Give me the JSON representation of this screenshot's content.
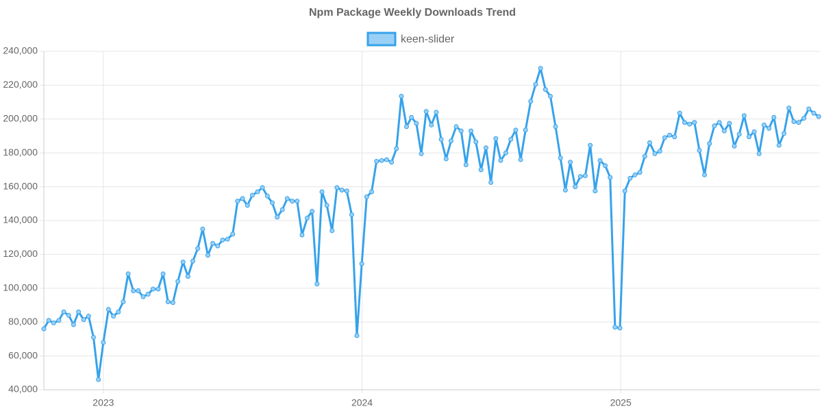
{
  "chart_data": {
    "type": "line",
    "title": "Npm Package Weekly Downloads Trend",
    "x": [
      2022.77,
      2022.789,
      2022.808,
      2022.828,
      2022.847,
      2022.866,
      2022.885,
      2022.904,
      2022.924,
      2022.943,
      2022.962,
      2022.981,
      2023.0,
      2023.02,
      2023.039,
      2023.058,
      2023.077,
      2023.096,
      2023.116,
      2023.135,
      2023.154,
      2023.173,
      2023.192,
      2023.212,
      2023.231,
      2023.25,
      2023.269,
      2023.288,
      2023.308,
      2023.327,
      2023.346,
      2023.365,
      2023.384,
      2023.404,
      2023.423,
      2023.442,
      2023.461,
      2023.48,
      2023.5,
      2023.519,
      2023.538,
      2023.557,
      2023.576,
      2023.596,
      2023.615,
      2023.634,
      2023.653,
      2023.672,
      2023.692,
      2023.711,
      2023.73,
      2023.749,
      2023.768,
      2023.788,
      2023.807,
      2023.826,
      2023.845,
      2023.864,
      2023.884,
      2023.903,
      2023.922,
      2023.941,
      2023.96,
      2023.98,
      2023.999,
      2024.018,
      2024.037,
      2024.056,
      2024.076,
      2024.095,
      2024.114,
      2024.133,
      2024.152,
      2024.172,
      2024.191,
      2024.21,
      2024.229,
      2024.248,
      2024.268,
      2024.287,
      2024.306,
      2024.325,
      2024.344,
      2024.364,
      2024.383,
      2024.402,
      2024.421,
      2024.44,
      2024.46,
      2024.479,
      2024.498,
      2024.517,
      2024.536,
      2024.556,
      2024.575,
      2024.594,
      2024.613,
      2024.632,
      2024.652,
      2024.671,
      2024.69,
      2024.709,
      2024.728,
      2024.748,
      2024.767,
      2024.786,
      2024.805,
      2024.824,
      2024.844,
      2024.863,
      2024.882,
      2024.901,
      2024.92,
      2024.94,
      2024.959,
      2024.978,
      2024.997,
      2025.016,
      2025.036,
      2025.055,
      2025.074,
      2025.093,
      2025.112,
      2025.132,
      2025.151,
      2025.17,
      2025.189,
      2025.208,
      2025.228,
      2025.247,
      2025.266,
      2025.285,
      2025.304,
      2025.324,
      2025.343,
      2025.362,
      2025.381,
      2025.4,
      2025.42,
      2025.439,
      2025.458,
      2025.477,
      2025.496,
      2025.516,
      2025.535,
      2025.554,
      2025.573,
      2025.592,
      2025.612,
      2025.631,
      2025.65,
      2025.669,
      2025.688,
      2025.708,
      2025.727,
      2025.746,
      2025.765
    ],
    "series": [
      {
        "name": "keen-slider",
        "color": "#36a2eb",
        "fill": "#9ad0f5",
        "values": [
          76000,
          81000,
          79500,
          81000,
          86000,
          84000,
          78500,
          86000,
          81500,
          83500,
          71000,
          46000,
          68000,
          87500,
          83500,
          86000,
          92000,
          108500,
          98500,
          98500,
          95000,
          96500,
          99500,
          99500,
          108500,
          92000,
          91500,
          104000,
          115500,
          107000,
          116000,
          123500,
          135000,
          119500,
          126500,
          125000,
          128500,
          129000,
          132000,
          151500,
          153000,
          149000,
          155000,
          157000,
          159500,
          154500,
          150500,
          142000,
          146500,
          153000,
          151500,
          151500,
          131500,
          141500,
          145500,
          102500,
          157000,
          149000,
          134000,
          159500,
          158000,
          157500,
          143500,
          72000,
          114500,
          154000,
          157000,
          175000,
          175500,
          176000,
          174500,
          182500,
          213500,
          195500,
          201000,
          197500,
          179500,
          204500,
          196500,
          204000,
          188000,
          176500,
          187000,
          195500,
          193000,
          173000,
          193000,
          186500,
          170000,
          183000,
          162500,
          188500,
          175500,
          180000,
          188000,
          193500,
          176000,
          193500,
          210500,
          220500,
          230000,
          217500,
          213500,
          195500,
          177000,
          158000,
          174500,
          160000,
          166000,
          166500,
          184500,
          157500,
          175500,
          172500,
          165500,
          77000,
          76500,
          157500,
          165000,
          167000,
          168500,
          178000,
          186000,
          179500,
          181000,
          189000,
          190500,
          189500,
          203500,
          198000,
          197000,
          198000,
          181500,
          167000,
          185500,
          196000,
          198000,
          193000,
          197500,
          184000,
          191000,
          202000,
          189500,
          192500,
          179500,
          196500,
          194500,
          201000,
          184500,
          191500,
          206500,
          198500,
          198000,
          200500,
          206000,
          203500,
          201500
        ]
      }
    ],
    "xlim": [
      2022.77,
      2025.77
    ],
    "xticks": [
      2023,
      2024,
      2025
    ],
    "ylim": [
      40000,
      240000
    ],
    "yticks": [
      {
        "value": 40000,
        "label": "40,000"
      },
      {
        "value": 60000,
        "label": "60,000"
      },
      {
        "value": 80000,
        "label": "80,000"
      },
      {
        "value": 100000,
        "label": "100,000"
      },
      {
        "value": 120000,
        "label": "120,000"
      },
      {
        "value": 140000,
        "label": "140,000"
      },
      {
        "value": 160000,
        "label": "160,000"
      },
      {
        "value": 180000,
        "label": "180,000"
      },
      {
        "value": 200000,
        "label": "200,000"
      },
      {
        "value": 220000,
        "label": "220,000"
      },
      {
        "value": 240000,
        "label": "240,000"
      }
    ],
    "grid": true,
    "legend": "top"
  }
}
